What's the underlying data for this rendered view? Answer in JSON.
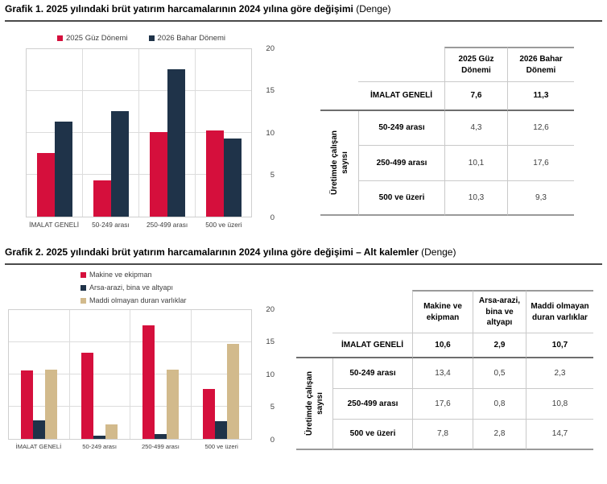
{
  "section1": {
    "title_bold": "Grafik 1. 2025 yılındaki brüt yatırım harcamalarının 2024 yılına göre değişimi",
    "title_normal": "(Denge)",
    "table": {
      "col_headers": [
        "2025 Güz Dönemi",
        "2026 Bahar Dönemi"
      ],
      "row_group_label_line1": "Üretimde çalışan",
      "row_group_label_line2": "sayısı",
      "total_row": {
        "label": "İMALAT GENELİ",
        "values": [
          "7,6",
          "11,3"
        ]
      },
      "rows": [
        {
          "label": "50-249 arası",
          "values": [
            "4,3",
            "12,6"
          ]
        },
        {
          "label": "250-499 arası",
          "values": [
            "10,1",
            "17,6"
          ]
        },
        {
          "label": "500 ve üzeri",
          "values": [
            "10,3",
            "9,3"
          ]
        }
      ]
    }
  },
  "section2": {
    "title_bold": "Grafik 2. 2025 yılındaki brüt yatırım harcamalarının 2024 yılına göre değişimi – Alt kalemler",
    "title_normal": "(Denge)",
    "table": {
      "col_headers": [
        "Makine ve ekipman",
        "Arsa-arazi, bina ve altyapı",
        "Maddi olmayan duran varlıklar"
      ],
      "row_group_label_line1": "Üretimde çalışan",
      "row_group_label_line2": "sayısı",
      "total_row": {
        "label": "İMALAT GENELİ",
        "values": [
          "10,6",
          "2,9",
          "10,7"
        ]
      },
      "rows": [
        {
          "label": "50-249 arası",
          "values": [
            "13,4",
            "0,5",
            "2,3"
          ]
        },
        {
          "label": "250-499 arası",
          "values": [
            "17,6",
            "0,8",
            "10,8"
          ]
        },
        {
          "label": "500 ve üzeri",
          "values": [
            "7,8",
            "2,8",
            "14,7"
          ]
        }
      ]
    }
  },
  "colors": {
    "red": "#d50f3c",
    "navy": "#1f3349",
    "tan": "#d2ba8c",
    "grid": "#dcdcdc"
  },
  "chart_data": [
    {
      "type": "bar",
      "title": "Grafik 1. 2025 yılındaki brüt yatırım harcamalarının 2024 yılına göre değişimi (Denge)",
      "categories": [
        "İMALAT GENELİ",
        "50-249 arası",
        "250-499 arası",
        "500 ve üzeri"
      ],
      "series": [
        {
          "name": "2025 Güz Dönemi",
          "color": "#d50f3c",
          "values": [
            7.6,
            4.3,
            10.1,
            10.3
          ]
        },
        {
          "name": "2026 Bahar Dönemi",
          "color": "#1f3349",
          "values": [
            11.3,
            12.6,
            17.6,
            9.3
          ]
        }
      ],
      "xlabel": "",
      "ylabel": "",
      "ylim": [
        0,
        20
      ],
      "yticks": [
        0,
        5,
        10,
        15,
        20
      ],
      "grid": true,
      "legend_position": "top-center",
      "yaxis_side": "right"
    },
    {
      "type": "bar",
      "title": "Grafik 2. 2025 yılındaki brüt yatırım harcamalarının 2024 yılına göre değişimi – Alt kalemler (Denge)",
      "categories": [
        "İMALAT GENELİ",
        "50-249 arası",
        "250-499 arası",
        "500 ve üzeri"
      ],
      "series": [
        {
          "name": "Makine ve ekipman",
          "color": "#d50f3c",
          "values": [
            10.6,
            13.4,
            17.6,
            7.8
          ]
        },
        {
          "name": "Arsa-arazi, bina ve altyapı",
          "color": "#1f3349",
          "values": [
            2.9,
            0.5,
            0.8,
            2.8
          ]
        },
        {
          "name": "Maddi olmayan duran varlıklar",
          "color": "#d2ba8c",
          "values": [
            10.7,
            2.3,
            10.8,
            14.7
          ]
        }
      ],
      "xlabel": "",
      "ylabel": "",
      "ylim": [
        0,
        20
      ],
      "yticks": [
        0,
        5,
        10,
        15,
        20
      ],
      "grid": true,
      "legend_position": "top-left",
      "yaxis_side": "right"
    }
  ]
}
